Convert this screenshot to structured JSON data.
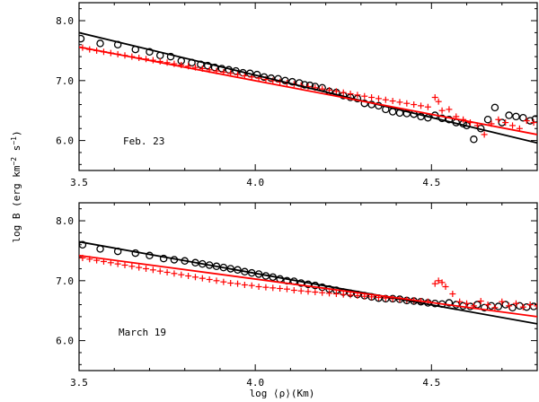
{
  "chart_data": {
    "type": "scatter",
    "ylabel": "log B (erg km⁻² s⁻¹)",
    "ylabel_parts": {
      "main": "log B (erg km",
      "exp1": "−2",
      "mid": " s",
      "exp2": "−1",
      "close": ")"
    },
    "xlabel": "log ⟨ρ⟩(Km)",
    "xlim": [
      3.5,
      4.8
    ],
    "ylim": [
      5.5,
      8.3
    ],
    "x_ticks": [
      3.5,
      4.0,
      4.5
    ],
    "x_tick_labels": [
      "3.5",
      "4.0",
      "4.5"
    ],
    "y_ticks": [
      6.0,
      7.0,
      8.0
    ],
    "y_tick_labels": [
      "6.0",
      "7.0",
      "8.0"
    ],
    "colors": {
      "black_series": "#000000",
      "red_series": "#ff0000"
    },
    "panels": [
      {
        "label": "Feb. 23",
        "series": [
          {
            "name": "circles",
            "marker": "circle",
            "color": "#000000",
            "x": [
              3.505,
              3.56,
              3.61,
              3.66,
              3.7,
              3.73,
              3.76,
              3.79,
              3.82,
              3.845,
              3.865,
              3.885,
              3.905,
              3.925,
              3.945,
              3.965,
              3.985,
              4.005,
              4.025,
              4.045,
              4.065,
              4.085,
              4.105,
              4.125,
              4.14,
              4.155,
              4.17,
              4.19,
              4.21,
              4.23,
              4.25,
              4.27,
              4.29,
              4.31,
              4.33,
              4.35,
              4.37,
              4.39,
              4.41,
              4.43,
              4.45,
              4.47,
              4.49,
              4.51,
              4.53,
              4.55,
              4.57,
              4.59,
              4.6,
              4.62,
              4.64,
              4.66,
              4.68,
              4.7,
              4.72,
              4.74,
              4.76,
              4.78,
              4.795
            ],
            "y": [
              7.7,
              7.62,
              7.6,
              7.52,
              7.48,
              7.42,
              7.4,
              7.33,
              7.3,
              7.27,
              7.25,
              7.22,
              7.2,
              7.18,
              7.16,
              7.13,
              7.12,
              7.1,
              7.06,
              7.04,
              7.03,
              7.0,
              6.98,
              6.96,
              6.93,
              6.92,
              6.9,
              6.88,
              6.82,
              6.8,
              6.75,
              6.72,
              6.7,
              6.62,
              6.6,
              6.58,
              6.52,
              6.48,
              6.46,
              6.45,
              6.44,
              6.4,
              6.38,
              6.42,
              6.37,
              6.35,
              6.3,
              6.28,
              6.25,
              6.02,
              6.2,
              6.35,
              6.55,
              6.3,
              6.42,
              6.4,
              6.38,
              6.33,
              6.36
            ]
          },
          {
            "name": "crosses",
            "marker": "cross",
            "color": "#ff0000",
            "x": [
              3.51,
              3.53,
              3.55,
              3.57,
              3.59,
              3.61,
              3.63,
              3.65,
              3.67,
              3.69,
              3.71,
              3.73,
              3.75,
              3.77,
              3.79,
              3.81,
              3.83,
              3.85,
              3.87,
              3.89,
              3.91,
              3.93,
              3.95,
              3.97,
              3.99,
              4.01,
              4.03,
              4.05,
              4.07,
              4.09,
              4.11,
              4.13,
              4.15,
              4.17,
              4.19,
              4.21,
              4.23,
              4.25,
              4.27,
              4.29,
              4.31,
              4.33,
              4.35,
              4.37,
              4.39,
              4.41,
              4.43,
              4.45,
              4.47,
              4.49,
              4.51,
              4.52,
              4.53,
              4.55,
              4.57,
              4.59,
              4.61,
              4.63,
              4.65,
              4.67,
              4.69,
              4.71,
              4.73,
              4.75,
              4.77,
              4.79
            ],
            "y": [
              7.55,
              7.52,
              7.5,
              7.48,
              7.46,
              7.44,
              7.42,
              7.4,
              7.38,
              7.36,
              7.34,
              7.32,
              7.3,
              7.28,
              7.26,
              7.24,
              7.22,
              7.2,
              7.18,
              7.16,
              7.14,
              7.12,
              7.1,
              7.08,
              7.06,
              7.04,
              7.02,
              7.0,
              6.98,
              6.96,
              6.94,
              6.92,
              6.9,
              6.88,
              6.86,
              6.84,
              6.82,
              6.8,
              6.78,
              6.76,
              6.74,
              6.72,
              6.7,
              6.68,
              6.66,
              6.64,
              6.62,
              6.6,
              6.58,
              6.56,
              6.72,
              6.65,
              6.5,
              6.52,
              6.4,
              6.35,
              6.3,
              6.25,
              6.1,
              6.28,
              6.35,
              6.3,
              6.25,
              6.2,
              6.33,
              6.3
            ]
          }
        ],
        "fits": [
          {
            "name": "black-fit",
            "color": "#000000",
            "x": [
              3.5,
              4.8
            ],
            "y": [
              7.8,
              5.96
            ]
          },
          {
            "name": "red-fit",
            "color": "#ff0000",
            "x": [
              3.5,
              4.8
            ],
            "y": [
              7.56,
              6.1
            ]
          }
        ]
      },
      {
        "label": "March 19",
        "series": [
          {
            "name": "circles",
            "marker": "circle",
            "color": "#000000",
            "x": [
              3.51,
              3.56,
              3.61,
              3.66,
              3.7,
              3.74,
              3.77,
              3.8,
              3.83,
              3.85,
              3.87,
              3.89,
              3.91,
              3.93,
              3.95,
              3.97,
              3.99,
              4.01,
              4.03,
              4.05,
              4.07,
              4.09,
              4.11,
              4.13,
              4.15,
              4.17,
              4.19,
              4.21,
              4.23,
              4.25,
              4.27,
              4.29,
              4.31,
              4.33,
              4.35,
              4.37,
              4.39,
              4.41,
              4.43,
              4.45,
              4.47,
              4.49,
              4.51,
              4.53,
              4.55,
              4.57,
              4.59,
              4.61,
              4.63,
              4.65,
              4.67,
              4.69,
              4.71,
              4.73,
              4.75,
              4.77,
              4.79
            ],
            "y": [
              7.6,
              7.53,
              7.49,
              7.46,
              7.42,
              7.37,
              7.35,
              7.33,
              7.3,
              7.28,
              7.26,
              7.24,
              7.22,
              7.2,
              7.18,
              7.15,
              7.13,
              7.11,
              7.08,
              7.06,
              7.03,
              7.0,
              6.99,
              6.96,
              6.94,
              6.92,
              6.89,
              6.86,
              6.84,
              6.81,
              6.79,
              6.77,
              6.75,
              6.73,
              6.71,
              6.7,
              6.7,
              6.69,
              6.67,
              6.66,
              6.65,
              6.63,
              6.62,
              6.61,
              6.63,
              6.6,
              6.58,
              6.57,
              6.6,
              6.55,
              6.58,
              6.57,
              6.6,
              6.55,
              6.58,
              6.56,
              6.57
            ]
          },
          {
            "name": "crosses",
            "marker": "cross",
            "color": "#ff0000",
            "x": [
              3.51,
              3.53,
              3.55,
              3.57,
              3.59,
              3.61,
              3.63,
              3.65,
              3.67,
              3.69,
              3.71,
              3.73,
              3.75,
              3.77,
              3.79,
              3.81,
              3.83,
              3.85,
              3.87,
              3.89,
              3.91,
              3.93,
              3.95,
              3.97,
              3.99,
              4.01,
              4.03,
              4.05,
              4.07,
              4.09,
              4.11,
              4.13,
              4.15,
              4.17,
              4.19,
              4.21,
              4.23,
              4.25,
              4.27,
              4.29,
              4.31,
              4.33,
              4.35,
              4.37,
              4.39,
              4.41,
              4.43,
              4.45,
              4.47,
              4.49,
              4.51,
              4.52,
              4.53,
              4.54,
              4.56,
              4.58,
              4.6,
              4.62,
              4.64,
              4.66,
              4.68,
              4.7,
              4.72,
              4.74,
              4.76,
              4.78,
              4.8
            ],
            "y": [
              7.38,
              7.36,
              7.34,
              7.32,
              7.3,
              7.28,
              7.26,
              7.24,
              7.22,
              7.2,
              7.18,
              7.16,
              7.14,
              7.12,
              7.1,
              7.08,
              7.06,
              7.04,
              7.02,
              7.0,
              6.98,
              6.96,
              6.95,
              6.93,
              6.92,
              6.9,
              6.89,
              6.88,
              6.87,
              6.86,
              6.84,
              6.83,
              6.82,
              6.81,
              6.8,
              6.79,
              6.78,
              6.77,
              6.76,
              6.75,
              6.74,
              6.73,
              6.72,
              6.71,
              6.7,
              6.69,
              6.68,
              6.67,
              6.66,
              6.65,
              6.95,
              7.0,
              6.97,
              6.9,
              6.78,
              6.65,
              6.62,
              6.58,
              6.66,
              6.6,
              6.55,
              6.65,
              6.58,
              6.62,
              6.56,
              6.6,
              6.58
            ]
          }
        ],
        "fits": [
          {
            "name": "black-fit",
            "color": "#000000",
            "x": [
              3.5,
              4.8
            ],
            "y": [
              7.65,
              6.28
            ]
          },
          {
            "name": "red-fit",
            "color": "#ff0000",
            "x": [
              3.5,
              4.8
            ],
            "y": [
              7.42,
              6.4
            ]
          }
        ]
      }
    ]
  }
}
